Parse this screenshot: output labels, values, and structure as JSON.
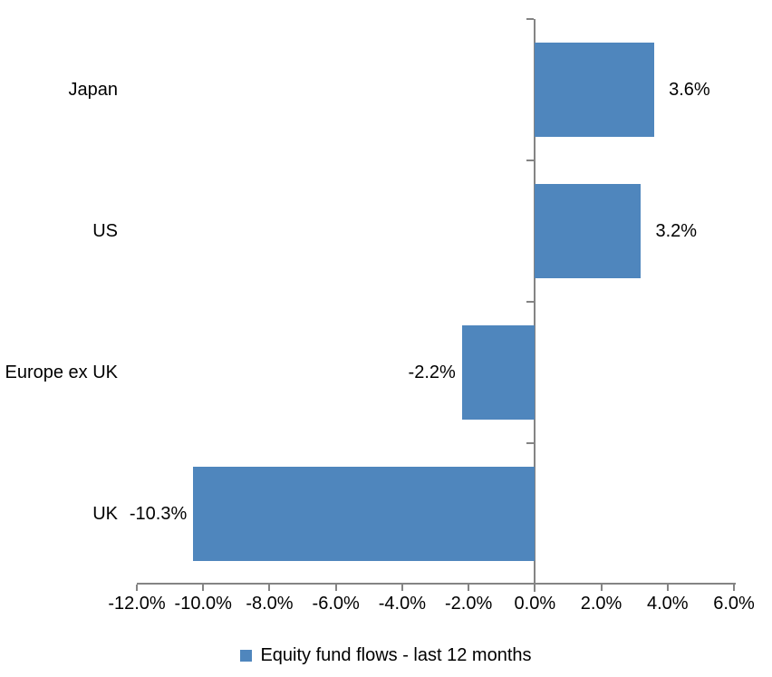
{
  "chart_data": {
    "type": "bar",
    "orientation": "horizontal",
    "title": "",
    "categories": [
      "Japan",
      "US",
      "Europe ex UK",
      "UK"
    ],
    "series": [
      {
        "name": "Equity fund flows - last 12 months",
        "values": [
          3.6,
          3.2,
          -2.2,
          -10.3
        ],
        "value_labels": [
          "3.6%",
          "3.2%",
          "-2.2%",
          "-10.3%"
        ]
      }
    ],
    "xlim": [
      -12,
      6
    ],
    "x_ticks": [
      -12,
      -10,
      -8,
      -6,
      -4,
      -2,
      0,
      2,
      4,
      6
    ],
    "x_tick_labels": [
      "-12.0%",
      "-10.0%",
      "-8.0%",
      "-6.0%",
      "-4.0%",
      "-2.0%",
      "0.0%",
      "2.0%",
      "4.0%",
      "6.0%"
    ],
    "grid": false,
    "legend": {
      "position": "bottom",
      "entries": [
        "Equity fund flows - last 12 months"
      ]
    },
    "colors": {
      "bar": "#4F86BD",
      "axis": "#848484",
      "text": "#000000",
      "background": "#FFFFFF"
    }
  }
}
